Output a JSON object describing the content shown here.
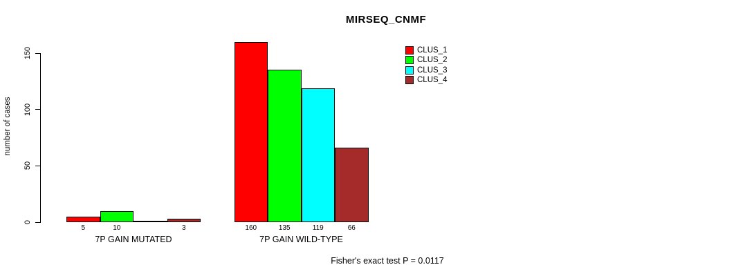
{
  "chart_data": {
    "type": "bar",
    "title": "MIRSEQ_CNMF",
    "ylabel": "number of cases",
    "xlabel": "",
    "ylim": [
      0,
      150
    ],
    "yticks": [
      0,
      50,
      100,
      150
    ],
    "categories": [
      "7P GAIN MUTATED",
      "7P GAIN WILD-TYPE"
    ],
    "series": [
      {
        "name": "CLUS_1",
        "color": "#ff0000",
        "values": [
          5,
          160
        ]
      },
      {
        "name": "CLUS_2",
        "color": "#00ff00",
        "values": [
          10,
          135
        ]
      },
      {
        "name": "CLUS_3",
        "color": "#00ffff",
        "values": [
          0,
          119
        ]
      },
      {
        "name": "CLUS_4",
        "color": "#a52a2a",
        "values": [
          3,
          66
        ]
      }
    ],
    "bar_count_labels": [
      [
        "5",
        "10",
        "",
        "3"
      ],
      [
        "160",
        "135",
        "119",
        "66"
      ]
    ],
    "annotation": "Fisher's exact test P = 0.0117",
    "grid": false,
    "legend_position": "top, right of plot center",
    "background_color": "#ffffff",
    "text_color": "#000000"
  }
}
